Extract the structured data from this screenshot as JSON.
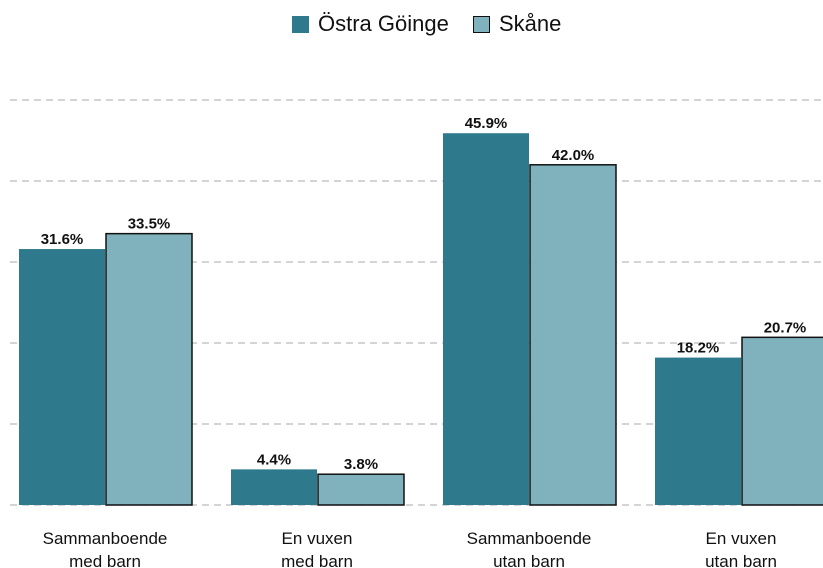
{
  "chart_data": {
    "type": "bar",
    "categories": [
      "Sammanboende\nmed barn",
      "En vuxen\nmed barn",
      "Sammanboende\nutan barn",
      "En vuxen\nutan barn"
    ],
    "series": [
      {
        "name": "Östra Göinge",
        "color": "#2e7a8c",
        "values": [
          31.6,
          4.4,
          45.9,
          18.2
        ],
        "value_labels": [
          "31.6%",
          "4.4%",
          "45.9%",
          "18.2%"
        ]
      },
      {
        "name": "Skåne",
        "color": "#7fb2bc",
        "values": [
          33.5,
          3.8,
          42.0,
          20.7
        ],
        "value_labels": [
          "33.5%",
          "3.8%",
          "42.0%",
          "20.7%"
        ]
      }
    ],
    "ylim": [
      0,
      50
    ],
    "yticks": [
      0,
      10,
      20,
      30,
      40,
      50
    ],
    "grid": true,
    "legend": "top"
  }
}
